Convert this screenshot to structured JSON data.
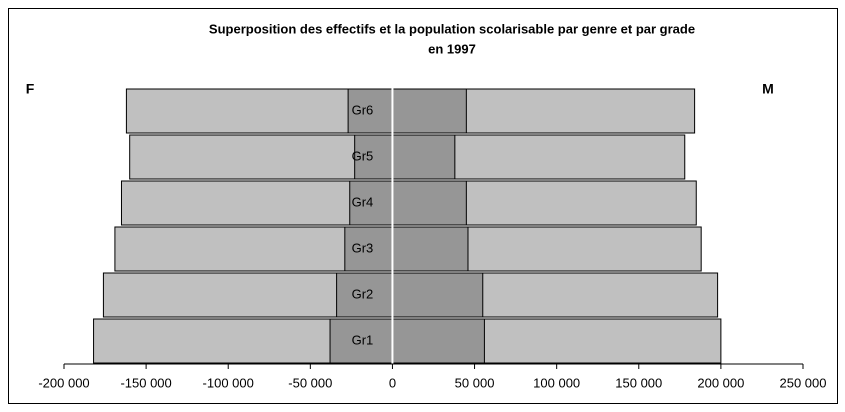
{
  "chart_data": {
    "type": "pyramid",
    "title": [
      "Superposition des effectifs et la population scolarisable par genre et par grade",
      "en 1997"
    ],
    "left_label": "F",
    "right_label": "M",
    "categories": [
      "Gr1",
      "Gr2",
      "Gr3",
      "Gr4",
      "Gr5",
      "Gr6"
    ],
    "series": [
      {
        "color": "#c0c0c0",
        "values": [
          -182000,
          -176000,
          -169000,
          -165000,
          -160000,
          -162000
        ]
      },
      {
        "color": "#c0c0c0",
        "values": [
          200000,
          198000,
          188000,
          185000,
          178000,
          184000
        ]
      },
      {
        "color": "#969696",
        "values": [
          -38000,
          -34000,
          -29000,
          -26000,
          -23000,
          -27000
        ]
      },
      {
        "color": "#969696",
        "values": [
          56000,
          55000,
          46000,
          45000,
          38000,
          45000
        ]
      }
    ],
    "xlim": [
      -200000,
      250000
    ],
    "xticks": [
      {
        "value": -200000,
        "label": "-200 000"
      },
      {
        "value": -150000,
        "label": "-150 000"
      },
      {
        "value": -100000,
        "label": "-100 000"
      },
      {
        "value": -50000,
        "label": "-50 000"
      },
      0,
      {
        "value": 50000,
        "label": "50 000"
      },
      {
        "value": 100000,
        "label": "100 000"
      },
      {
        "value": 150000,
        "label": "150 000"
      },
      {
        "value": 200000,
        "label": "200 000"
      },
      {
        "value": 250000,
        "label": "250 000"
      }
    ]
  }
}
